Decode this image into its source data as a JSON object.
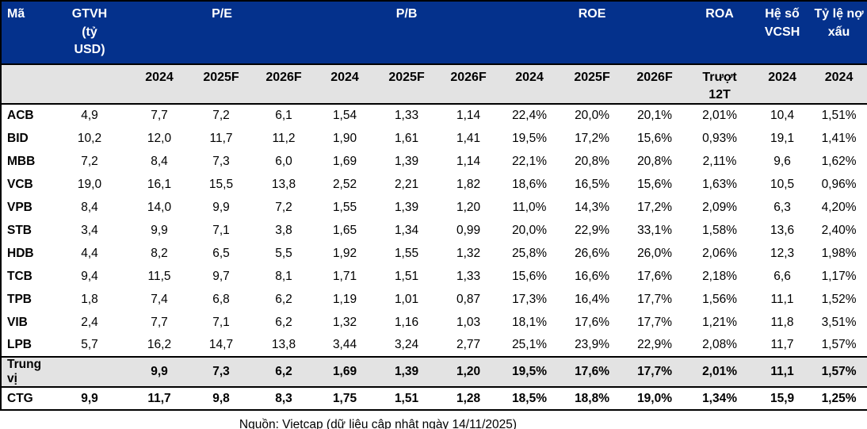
{
  "colors": {
    "header_bg": "#04318c",
    "header_text": "#ffffff",
    "subheader_bg": "#e3e3e3",
    "median_row_bg": "#e3e3e3",
    "border": "#000000",
    "body_text": "#000000"
  },
  "chart_data": {
    "type": "table",
    "column_groups": [
      {
        "label": "Mã",
        "span": 1
      },
      {
        "label": "GTVH\n(tỷ\nUSD)",
        "span": 1
      },
      {
        "label": "P/E",
        "span": 3
      },
      {
        "label": "P/B",
        "span": 3
      },
      {
        "label": "ROE",
        "span": 3
      },
      {
        "label": "ROA",
        "span": 1
      },
      {
        "label": "Hệ số\nVCSH",
        "span": 1
      },
      {
        "label": "Tỷ lệ nợ\nxấu",
        "span": 1
      }
    ],
    "subheaders": [
      "",
      "",
      "2024",
      "2025F",
      "2026F",
      "2024",
      "2025F",
      "2026F",
      "2024",
      "2025F",
      "2026F",
      "Trượt\n12T",
      "2024",
      "2024"
    ],
    "columns": [
      "Mã",
      "GTVH (tỷ USD)",
      "P/E 2024",
      "P/E 2025F",
      "P/E 2026F",
      "P/B 2024",
      "P/B 2025F",
      "P/B 2026F",
      "ROE 2024",
      "ROE 2025F",
      "ROE 2026F",
      "ROA Trượt 12T",
      "Hệ số VCSH 2024",
      "Tỷ lệ nợ xấu 2024"
    ],
    "rows": [
      [
        "ACB",
        "4,9",
        "7,7",
        "7,2",
        "6,1",
        "1,54",
        "1,33",
        "1,14",
        "22,4%",
        "20,0%",
        "20,1%",
        "2,01%",
        "10,4",
        "1,51%"
      ],
      [
        "BID",
        "10,2",
        "12,0",
        "11,7",
        "11,2",
        "1,90",
        "1,61",
        "1,41",
        "19,5%",
        "17,2%",
        "15,6%",
        "0,93%",
        "19,1",
        "1,41%"
      ],
      [
        "MBB",
        "7,2",
        "8,4",
        "7,3",
        "6,0",
        "1,69",
        "1,39",
        "1,14",
        "22,1%",
        "20,8%",
        "20,8%",
        "2,11%",
        "9,6",
        "1,62%"
      ],
      [
        "VCB",
        "19,0",
        "16,1",
        "15,5",
        "13,8",
        "2,52",
        "2,21",
        "1,82",
        "18,6%",
        "16,5%",
        "15,6%",
        "1,63%",
        "10,5",
        "0,96%"
      ],
      [
        "VPB",
        "8,4",
        "14,0",
        "9,9",
        "7,2",
        "1,55",
        "1,39",
        "1,20",
        "11,0%",
        "14,3%",
        "17,2%",
        "2,09%",
        "6,3",
        "4,20%"
      ],
      [
        "STB",
        "3,4",
        "9,9",
        "7,1",
        "3,8",
        "1,65",
        "1,34",
        "0,99",
        "20,0%",
        "22,9%",
        "33,1%",
        "1,58%",
        "13,6",
        "2,40%"
      ],
      [
        "HDB",
        "4,4",
        "8,2",
        "6,5",
        "5,5",
        "1,92",
        "1,55",
        "1,32",
        "25,8%",
        "26,6%",
        "26,0%",
        "2,06%",
        "12,3",
        "1,98%"
      ],
      [
        "TCB",
        "9,4",
        "11,5",
        "9,7",
        "8,1",
        "1,71",
        "1,51",
        "1,33",
        "15,6%",
        "16,6%",
        "17,6%",
        "2,18%",
        "6,6",
        "1,17%"
      ],
      [
        "TPB",
        "1,8",
        "7,4",
        "6,8",
        "6,2",
        "1,19",
        "1,01",
        "0,87",
        "17,3%",
        "16,4%",
        "17,7%",
        "1,56%",
        "11,1",
        "1,52%"
      ],
      [
        "VIB",
        "2,4",
        "7,7",
        "7,1",
        "6,2",
        "1,32",
        "1,16",
        "1,03",
        "18,1%",
        "17,6%",
        "17,7%",
        "1,21%",
        "11,8",
        "3,51%"
      ],
      [
        "LPB",
        "5,7",
        "16,2",
        "14,7",
        "13,8",
        "3,44",
        "3,24",
        "2,77",
        "25,1%",
        "23,9%",
        "22,9%",
        "2,08%",
        "11,7",
        "1,57%"
      ]
    ],
    "median_row": [
      "Trung vị",
      "",
      "9,9",
      "7,3",
      "6,2",
      "1,69",
      "1,39",
      "1,20",
      "19,5%",
      "17,6%",
      "17,7%",
      "2,01%",
      "11,1",
      "1,57%"
    ],
    "highlight_row": [
      "CTG",
      "9,9",
      "11,7",
      "9,8",
      "8,3",
      "1,75",
      "1,51",
      "1,28",
      "18,5%",
      "18,8%",
      "19,0%",
      "1,34%",
      "15,9",
      "1,25%"
    ],
    "source_note": "Nguồn: Vietcap (dữ liệu cập nhật ngày 14/11/2025)"
  }
}
